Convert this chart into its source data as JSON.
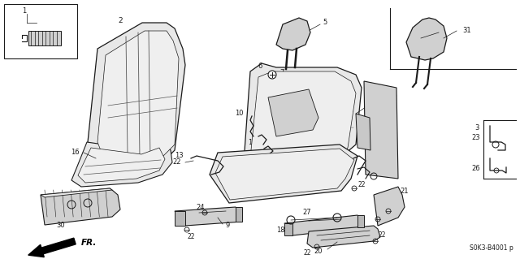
{
  "bg_color": "#ffffff",
  "fig_width": 6.4,
  "fig_height": 3.19,
  "dpi": 100,
  "diagram_code": "S0K3-B4001",
  "diagram_suffix": "p",
  "line_color": "#1a1a1a",
  "text_color": "#1a1a1a",
  "fill_light": "#e8e8e8",
  "fill_mid": "#d0d0d0",
  "fill_dark": "#b8b8b8"
}
